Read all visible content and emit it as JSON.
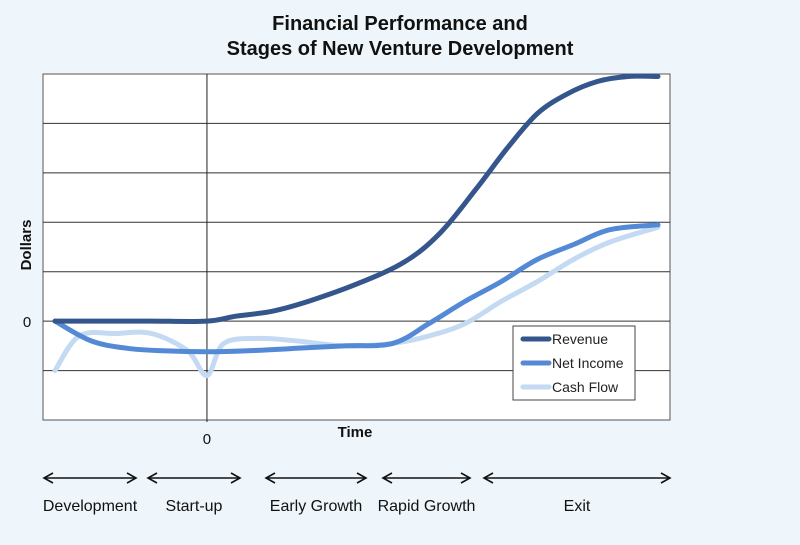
{
  "chart_data": {
    "type": "line",
    "title_lines": [
      "Financial Performance and",
      "Stages of New Venture Development"
    ],
    "xlabel": "Time",
    "ylabel": "Dollars",
    "x_zero_label": "0",
    "y_zero_label": "0",
    "grid": true,
    "legend_position": "bottom-right",
    "ylim": [
      -2,
      5
    ],
    "xlim": [
      0,
      100
    ],
    "x_zero": 25.2,
    "series": [
      {
        "name": "Revenue",
        "color": "#34568c",
        "x": [
          0,
          8,
          16,
          25.2,
          30,
          36,
          42,
          50,
          58,
          64,
          70,
          75,
          80,
          85,
          90,
          95,
          100
        ],
        "y": [
          0,
          0,
          0,
          0,
          0.1,
          0.2,
          0.4,
          0.75,
          1.2,
          1.8,
          2.7,
          3.5,
          4.2,
          4.6,
          4.85,
          4.95,
          4.95
        ]
      },
      {
        "name": "Net Income",
        "color": "#5489d6",
        "x": [
          0,
          6,
          12,
          18,
          25.2,
          32,
          40,
          48,
          56,
          62,
          68,
          74,
          80,
          86,
          92,
          100
        ],
        "y": [
          0,
          -0.4,
          -0.55,
          -0.6,
          -0.62,
          -0.6,
          -0.55,
          -0.5,
          -0.45,
          -0.05,
          0.4,
          0.8,
          1.25,
          1.55,
          1.85,
          1.95
        ]
      },
      {
        "name": "Cash Flow",
        "color": "#c4daf2",
        "x": [
          0,
          4,
          10,
          16,
          22,
          25.2,
          28,
          34,
          40,
          48,
          56,
          62,
          68,
          74,
          80,
          86,
          92,
          100
        ],
        "y": [
          -1,
          -0.3,
          -0.25,
          -0.25,
          -0.6,
          -1.1,
          -0.45,
          -0.35,
          -0.4,
          -0.5,
          -0.45,
          -0.3,
          -0.05,
          0.4,
          0.8,
          1.25,
          1.6,
          1.9
        ]
      }
    ],
    "stages": [
      "Development",
      "Start-up",
      "Early Growth",
      "Rapid Growth",
      "Exit"
    ]
  }
}
